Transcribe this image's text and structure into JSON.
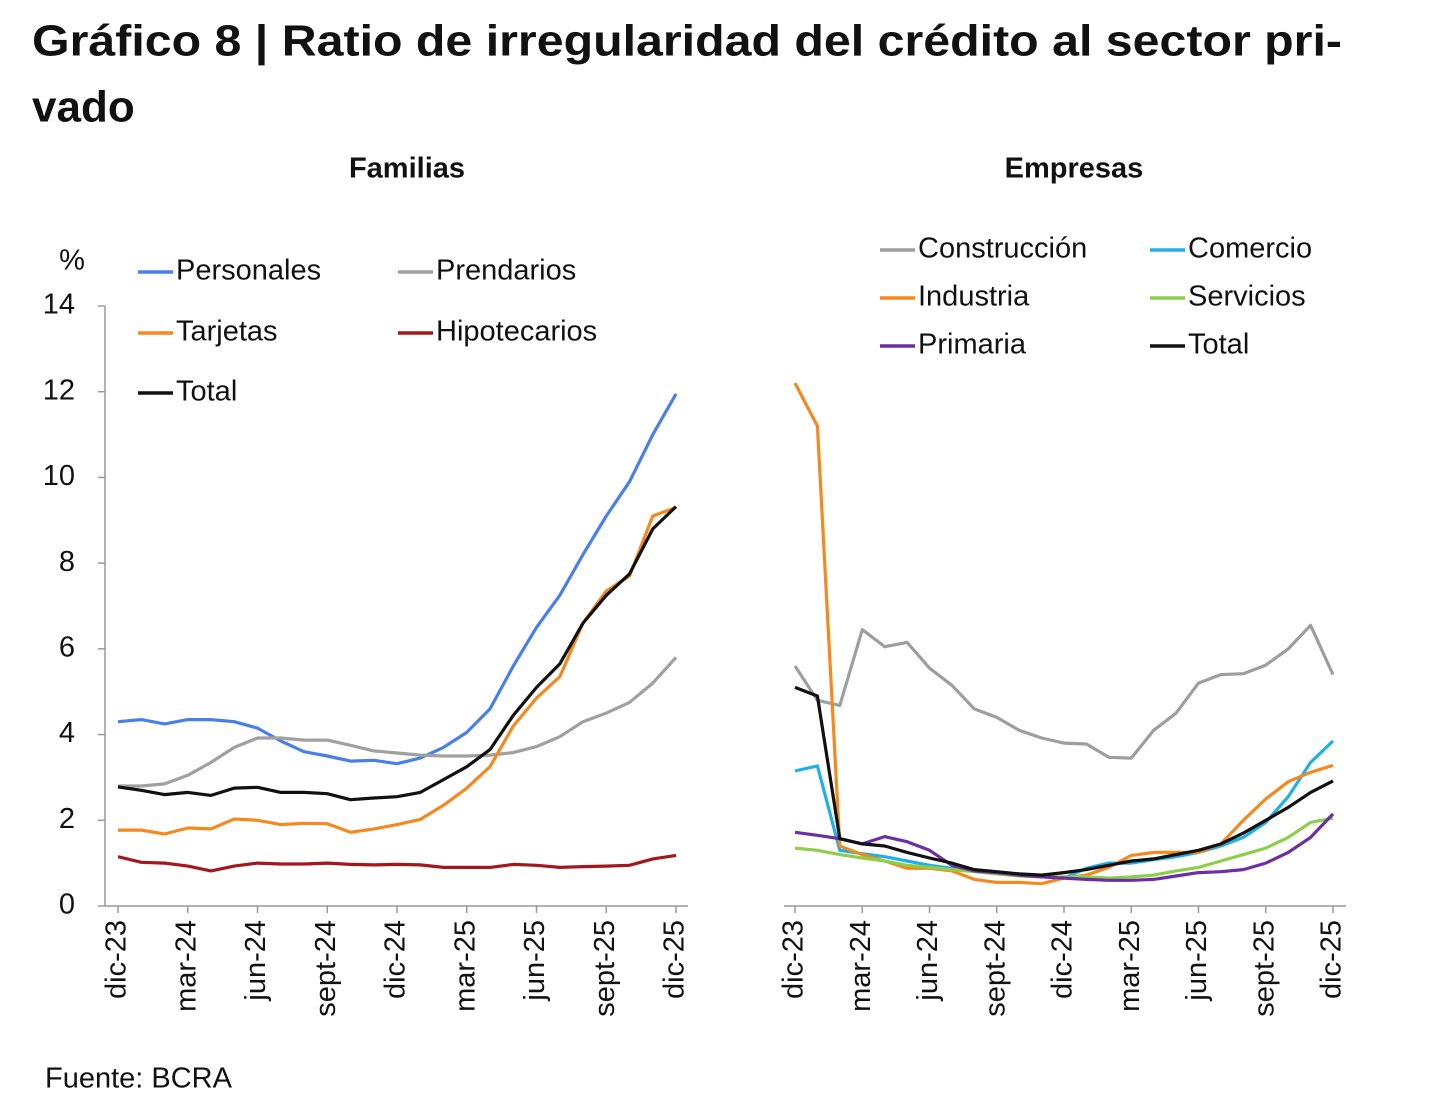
{
  "title": [
    "Gráfico 8 | Ratio de irregularidad del crédito al sector pri-",
    "vado"
  ],
  "source": "Fuente: BCRA",
  "chart_data": [
    {
      "type": "line",
      "title": "Familias",
      "y_label": "%",
      "categories": [
        "dic-23",
        null,
        null,
        "mar-24",
        null,
        null,
        "jun-24",
        null,
        null,
        "sept-24",
        null,
        null,
        "dic-24",
        null,
        null,
        "mar-25",
        null,
        null,
        "jun-25",
        null,
        null,
        "sept-25",
        null,
        null,
        "dic-25"
      ],
      "ylim": [
        0,
        14
      ],
      "yticks": [
        0,
        2,
        4,
        6,
        8,
        10,
        12,
        14
      ],
      "series": [
        {
          "name": "Personales",
          "color": "#4a7fe8",
          "values": [
            4.3,
            4.35,
            4.25,
            4.35,
            4.35,
            4.3,
            4.15,
            3.85,
            3.6,
            3.5,
            3.38,
            3.4,
            3.32,
            3.45,
            3.7,
            4.05,
            4.6,
            5.6,
            6.5,
            7.25,
            8.2,
            9.1,
            9.9,
            11.0,
            11.95
          ]
        },
        {
          "name": "Prendarios",
          "color": "#a0a0a0",
          "values": [
            2.8,
            2.8,
            2.85,
            3.05,
            3.35,
            3.7,
            3.92,
            3.92,
            3.87,
            3.87,
            3.75,
            3.62,
            3.57,
            3.52,
            3.5,
            3.5,
            3.52,
            3.58,
            3.72,
            3.95,
            4.3,
            4.5,
            4.75,
            5.2,
            5.8
          ]
        },
        {
          "name": "Tarjetas",
          "color": "#f5891f",
          "values": [
            1.77,
            1.77,
            1.68,
            1.82,
            1.8,
            2.03,
            2.0,
            1.9,
            1.93,
            1.92,
            1.72,
            1.8,
            1.9,
            2.02,
            2.35,
            2.75,
            3.25,
            4.2,
            4.85,
            5.35,
            6.6,
            7.35,
            7.7,
            9.1,
            9.3
          ]
        },
        {
          "name": "Hipotecarios",
          "color": "#a3171e",
          "values": [
            1.15,
            1.02,
            1.0,
            0.93,
            0.82,
            0.93,
            1.0,
            0.98,
            0.98,
            1.0,
            0.97,
            0.96,
            0.97,
            0.96,
            0.9,
            0.9,
            0.9,
            0.97,
            0.95,
            0.9,
            0.92,
            0.93,
            0.95,
            1.1,
            1.18
          ]
        },
        {
          "name": "Total",
          "color": "#111111",
          "values": [
            2.78,
            2.7,
            2.6,
            2.65,
            2.58,
            2.75,
            2.77,
            2.65,
            2.65,
            2.62,
            2.48,
            2.52,
            2.55,
            2.65,
            2.95,
            3.25,
            3.65,
            4.45,
            5.1,
            5.65,
            6.6,
            7.25,
            7.75,
            8.8,
            9.32
          ]
        }
      ]
    },
    {
      "type": "line",
      "title": "Empresas",
      "categories": [
        "dic-23",
        null,
        null,
        "mar-24",
        null,
        null,
        "jun-24",
        null,
        null,
        "sept-24",
        null,
        null,
        "dic-24",
        null,
        null,
        "mar-25",
        null,
        null,
        "jun-25",
        null,
        null,
        "sept-25",
        null,
        null,
        "dic-25"
      ],
      "ylim": [
        0,
        14
      ],
      "series": [
        {
          "name": "Construcción",
          "color": "#9e9e9e",
          "values": [
            5.6,
            4.8,
            4.68,
            6.45,
            6.05,
            6.15,
            5.55,
            5.15,
            4.6,
            4.4,
            4.1,
            3.92,
            3.8,
            3.78,
            3.47,
            3.45,
            4.1,
            4.5,
            5.2,
            5.4,
            5.42,
            5.62,
            6.0,
            6.55,
            5.4
          ]
        },
        {
          "name": "Comercio",
          "color": "#1fb0e6",
          "values": [
            3.15,
            3.27,
            1.3,
            1.22,
            1.15,
            1.05,
            0.95,
            0.88,
            0.82,
            0.78,
            0.72,
            0.7,
            0.65,
            0.88,
            1.0,
            1.0,
            1.08,
            1.15,
            1.25,
            1.4,
            1.6,
            1.95,
            2.55,
            3.35,
            3.85
          ]
        },
        {
          "name": "Industria",
          "color": "#f5891f",
          "values": [
            12.2,
            11.2,
            1.4,
            1.2,
            1.05,
            0.88,
            0.88,
            0.82,
            0.62,
            0.55,
            0.55,
            0.52,
            0.65,
            0.72,
            0.9,
            1.18,
            1.25,
            1.25,
            1.25,
            1.45,
            2.0,
            2.5,
            2.9,
            3.12,
            3.28
          ]
        },
        {
          "name": "Servicios",
          "color": "#8dcf4a",
          "values": [
            1.35,
            1.3,
            1.2,
            1.12,
            1.05,
            0.95,
            0.9,
            0.85,
            0.8,
            0.75,
            0.7,
            0.68,
            0.68,
            0.68,
            0.65,
            0.68,
            0.72,
            0.82,
            0.9,
            1.05,
            1.2,
            1.35,
            1.6,
            1.95,
            2.05
          ]
        },
        {
          "name": "Primaria",
          "color": "#6b2fa3",
          "values": [
            1.72,
            1.65,
            1.57,
            1.45,
            1.62,
            1.5,
            1.3,
            0.95,
            0.82,
            0.78,
            0.72,
            0.68,
            0.65,
            0.62,
            0.6,
            0.6,
            0.62,
            0.7,
            0.78,
            0.8,
            0.85,
            1.0,
            1.25,
            1.6,
            2.15
          ]
        },
        {
          "name": "Total",
          "color": "#111111",
          "values": [
            5.1,
            4.9,
            1.57,
            1.45,
            1.4,
            1.25,
            1.12,
            1.0,
            0.85,
            0.8,
            0.75,
            0.72,
            0.78,
            0.85,
            0.95,
            1.05,
            1.1,
            1.2,
            1.3,
            1.45,
            1.7,
            2.0,
            2.3,
            2.65,
            2.92
          ]
        }
      ]
    }
  ]
}
